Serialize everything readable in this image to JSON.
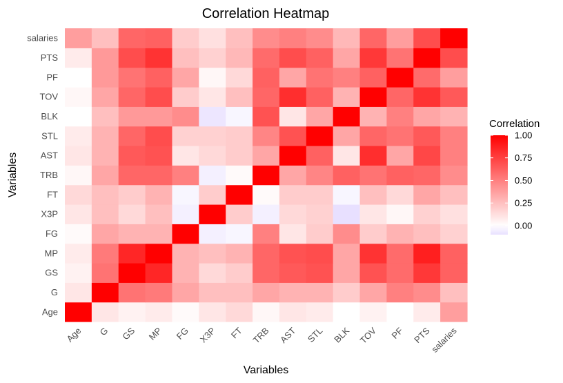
{
  "chart_data": {
    "type": "heatmap",
    "title": "Correlation Heatmap",
    "xlabel": "Variables",
    "ylabel": "Variables",
    "variables": [
      "Age",
      "G",
      "GS",
      "MP",
      "FG",
      "X3P",
      "FT",
      "TRB",
      "AST",
      "STL",
      "BLK",
      "TOV",
      "PF",
      "PTS",
      "salaries"
    ],
    "matrix": [
      [
        1.0,
        0.1,
        0.05,
        0.08,
        0.02,
        0.1,
        0.15,
        0.03,
        0.1,
        0.08,
        0.0,
        0.05,
        0.0,
        0.08,
        0.38
      ],
      [
        0.1,
        1.0,
        0.55,
        0.52,
        0.35,
        0.25,
        0.25,
        0.35,
        0.3,
        0.3,
        0.2,
        0.35,
        0.5,
        0.45,
        0.25
      ],
      [
        0.05,
        0.55,
        1.0,
        0.85,
        0.3,
        0.15,
        0.2,
        0.6,
        0.65,
        0.68,
        0.35,
        0.68,
        0.58,
        0.78,
        0.62
      ],
      [
        0.08,
        0.52,
        0.85,
        1.0,
        0.3,
        0.25,
        0.3,
        0.6,
        0.68,
        0.7,
        0.35,
        0.8,
        0.58,
        0.88,
        0.62
      ],
      [
        0.02,
        0.35,
        0.3,
        0.3,
        1.0,
        -0.05,
        -0.03,
        0.5,
        0.1,
        0.2,
        0.45,
        0.2,
        0.3,
        0.25,
        0.18
      ],
      [
        0.1,
        0.25,
        0.15,
        0.25,
        -0.05,
        1.0,
        0.2,
        -0.05,
        0.15,
        0.18,
        -0.1,
        0.1,
        0.03,
        0.18,
        0.12
      ],
      [
        0.15,
        0.25,
        0.2,
        0.3,
        -0.03,
        0.2,
        1.0,
        0.02,
        0.2,
        0.2,
        -0.03,
        0.25,
        0.15,
        0.35,
        0.25
      ],
      [
        0.03,
        0.35,
        0.6,
        0.6,
        0.5,
        -0.05,
        0.02,
        1.0,
        0.35,
        0.48,
        0.62,
        0.55,
        0.62,
        0.6,
        0.45
      ],
      [
        0.1,
        0.3,
        0.65,
        0.68,
        0.1,
        0.15,
        0.2,
        0.35,
        1.0,
        0.62,
        0.1,
        0.82,
        0.35,
        0.72,
        0.5
      ],
      [
        0.08,
        0.3,
        0.6,
        0.7,
        0.18,
        0.18,
        0.2,
        0.48,
        0.68,
        1.0,
        0.35,
        0.6,
        0.55,
        0.65,
        0.5
      ],
      [
        0.0,
        0.25,
        0.4,
        0.4,
        0.45,
        -0.08,
        -0.03,
        0.68,
        0.1,
        0.35,
        1.0,
        0.3,
        0.5,
        0.35,
        0.3
      ],
      [
        0.03,
        0.35,
        0.6,
        0.7,
        0.2,
        0.1,
        0.25,
        0.6,
        0.82,
        0.62,
        0.3,
        1.0,
        0.6,
        0.8,
        0.65
      ],
      [
        0.0,
        0.4,
        0.55,
        0.62,
        0.35,
        0.03,
        0.15,
        0.62,
        0.35,
        0.55,
        0.5,
        0.62,
        1.0,
        0.58,
        0.38
      ],
      [
        0.08,
        0.4,
        0.7,
        0.8,
        0.25,
        0.18,
        0.28,
        0.58,
        0.7,
        0.62,
        0.35,
        0.78,
        0.55,
        1.0,
        0.7
      ],
      [
        0.38,
        0.25,
        0.6,
        0.62,
        0.2,
        0.12,
        0.25,
        0.45,
        0.5,
        0.45,
        0.28,
        0.6,
        0.38,
        0.7,
        1.0
      ]
    ],
    "legend": {
      "title": "Correlation",
      "placement": "right",
      "ticks": [
        "1.00",
        "0.75",
        "0.50",
        "0.25",
        "0.00"
      ],
      "range": [
        -0.1,
        1.0
      ]
    },
    "colors": {
      "low": "#e8e0ff",
      "mid": "#ffffff",
      "high": "#ff0000"
    },
    "grid": false
  }
}
